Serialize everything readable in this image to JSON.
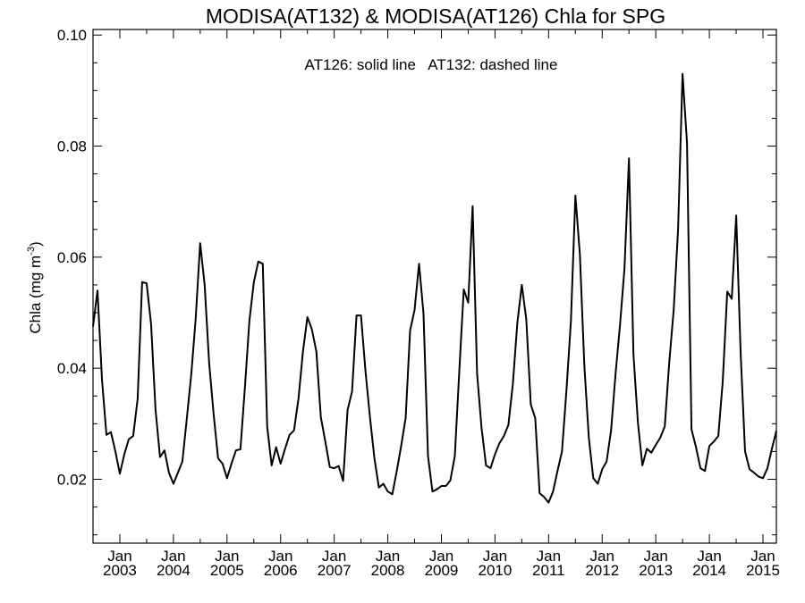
{
  "chart_data": {
    "type": "line",
    "title": "MODISA(AT132) & MODISA(AT126)  Chla for SPG",
    "annotation": "AT126: solid line   AT132: dashed line",
    "ylabel_main": "Chla (mg m",
    "ylabel_sup": "-3",
    "ylabel_close": ")",
    "xlabel": "",
    "xlim": [
      "2002-07-01",
      "2015-04-01"
    ],
    "ylim": [
      0.0085,
      0.101
    ],
    "y_ticks": [
      0.02,
      0.04,
      0.06,
      0.08,
      0.1
    ],
    "y_tick_labels": [
      "0.02",
      "0.04",
      "0.06",
      "0.08",
      "0.10"
    ],
    "x_ticks": [
      {
        "date": "2003-01-01",
        "month": "Jan",
        "year": "2003"
      },
      {
        "date": "2004-01-01",
        "month": "Jan",
        "year": "2004"
      },
      {
        "date": "2005-01-01",
        "month": "Jan",
        "year": "2005"
      },
      {
        "date": "2006-01-01",
        "month": "Jan",
        "year": "2006"
      },
      {
        "date": "2007-01-01",
        "month": "Jan",
        "year": "2007"
      },
      {
        "date": "2008-01-01",
        "month": "Jan",
        "year": "2008"
      },
      {
        "date": "2009-01-01",
        "month": "Jan",
        "year": "2009"
      },
      {
        "date": "2010-01-01",
        "month": "Jan",
        "year": "2010"
      },
      {
        "date": "2011-01-01",
        "month": "Jan",
        "year": "2011"
      },
      {
        "date": "2012-01-01",
        "month": "Jan",
        "year": "2012"
      },
      {
        "date": "2013-01-01",
        "month": "Jan",
        "year": "2013"
      },
      {
        "date": "2014-01-01",
        "month": "Jan",
        "year": "2014"
      },
      {
        "date": "2015-01-01",
        "month": "Jan",
        "year": "2015"
      }
    ],
    "grid": false,
    "series": [
      {
        "line_style": "solid",
        "color": "#000000",
        "points": [
          [
            "2002-07",
            0.0475
          ],
          [
            "2002-08",
            0.054
          ],
          [
            "2002-09",
            0.038
          ],
          [
            "2002-10",
            0.028
          ],
          [
            "2002-11",
            0.0285
          ],
          [
            "2002-12",
            0.025
          ],
          [
            "2003-01",
            0.021
          ],
          [
            "2003-02",
            0.0245
          ],
          [
            "2003-03",
            0.0272
          ],
          [
            "2003-04",
            0.0278
          ],
          [
            "2003-05",
            0.0345
          ],
          [
            "2003-06",
            0.0555
          ],
          [
            "2003-07",
            0.0553
          ],
          [
            "2003-08",
            0.048
          ],
          [
            "2003-09",
            0.0325
          ],
          [
            "2003-10",
            0.024
          ],
          [
            "2003-11",
            0.0252
          ],
          [
            "2003-12",
            0.0212
          ],
          [
            "2004-01",
            0.0192
          ],
          [
            "2004-02",
            0.0212
          ],
          [
            "2004-03",
            0.0232
          ],
          [
            "2004-04",
            0.031
          ],
          [
            "2004-05",
            0.039
          ],
          [
            "2004-06",
            0.049
          ],
          [
            "2004-07",
            0.0625
          ],
          [
            "2004-08",
            0.055
          ],
          [
            "2004-09",
            0.041
          ],
          [
            "2004-10",
            0.0318
          ],
          [
            "2004-11",
            0.0238
          ],
          [
            "2004-12",
            0.0228
          ],
          [
            "2005-01",
            0.0202
          ],
          [
            "2005-02",
            0.0228
          ],
          [
            "2005-03",
            0.0252
          ],
          [
            "2005-04",
            0.0254
          ],
          [
            "2005-05",
            0.0365
          ],
          [
            "2005-06",
            0.0485
          ],
          [
            "2005-07",
            0.0555
          ],
          [
            "2005-08",
            0.0592
          ],
          [
            "2005-09",
            0.0588
          ],
          [
            "2005-10",
            0.0295
          ],
          [
            "2005-11",
            0.0225
          ],
          [
            "2005-12",
            0.0258
          ],
          [
            "2006-01",
            0.0228
          ],
          [
            "2006-02",
            0.0255
          ],
          [
            "2006-03",
            0.028
          ],
          [
            "2006-04",
            0.0288
          ],
          [
            "2006-05",
            0.0345
          ],
          [
            "2006-06",
            0.043
          ],
          [
            "2006-07",
            0.0492
          ],
          [
            "2006-08",
            0.047
          ],
          [
            "2006-09",
            0.043
          ],
          [
            "2006-10",
            0.0312
          ],
          [
            "2006-11",
            0.0268
          ],
          [
            "2006-12",
            0.0222
          ],
          [
            "2007-01",
            0.022
          ],
          [
            "2007-02",
            0.0224
          ],
          [
            "2007-03",
            0.0197
          ],
          [
            "2007-04",
            0.0325
          ],
          [
            "2007-05",
            0.0358
          ],
          [
            "2007-06",
            0.0495
          ],
          [
            "2007-07",
            0.0495
          ],
          [
            "2007-08",
            0.0395
          ],
          [
            "2007-09",
            0.0312
          ],
          [
            "2007-10",
            0.0238
          ],
          [
            "2007-11",
            0.0185
          ],
          [
            "2007-12",
            0.0192
          ],
          [
            "2008-01",
            0.0178
          ],
          [
            "2008-02",
            0.0173
          ],
          [
            "2008-03",
            0.0215
          ],
          [
            "2008-04",
            0.026
          ],
          [
            "2008-05",
            0.031
          ],
          [
            "2008-06",
            0.0468
          ],
          [
            "2008-07",
            0.0505
          ],
          [
            "2008-08",
            0.0588
          ],
          [
            "2008-09",
            0.0498
          ],
          [
            "2008-10",
            0.0242
          ],
          [
            "2008-11",
            0.0178
          ],
          [
            "2008-12",
            0.0182
          ],
          [
            "2009-01",
            0.0188
          ],
          [
            "2009-02",
            0.0188
          ],
          [
            "2009-03",
            0.0198
          ],
          [
            "2009-04",
            0.0242
          ],
          [
            "2009-05",
            0.0395
          ],
          [
            "2009-06",
            0.0542
          ],
          [
            "2009-07",
            0.0518
          ],
          [
            "2009-08",
            0.0692
          ],
          [
            "2009-09",
            0.039
          ],
          [
            "2009-10",
            0.0292
          ],
          [
            "2009-11",
            0.0225
          ],
          [
            "2009-12",
            0.022
          ],
          [
            "2010-01",
            0.0245
          ],
          [
            "2010-02",
            0.0265
          ],
          [
            "2010-03",
            0.0278
          ],
          [
            "2010-04",
            0.0298
          ],
          [
            "2010-05",
            0.0372
          ],
          [
            "2010-06",
            0.0482
          ],
          [
            "2010-07",
            0.055
          ],
          [
            "2010-08",
            0.0488
          ],
          [
            "2010-09",
            0.0335
          ],
          [
            "2010-10",
            0.031
          ],
          [
            "2010-11",
            0.0175
          ],
          [
            "2010-12",
            0.0168
          ],
          [
            "2011-01",
            0.0158
          ],
          [
            "2011-02",
            0.0178
          ],
          [
            "2011-03",
            0.0215
          ],
          [
            "2011-04",
            0.025
          ],
          [
            "2011-05",
            0.036
          ],
          [
            "2011-06",
            0.0485
          ],
          [
            "2011-07",
            0.0711
          ],
          [
            "2011-08",
            0.0605
          ],
          [
            "2011-09",
            0.0405
          ],
          [
            "2011-10",
            0.0275
          ],
          [
            "2011-11",
            0.0202
          ],
          [
            "2011-12",
            0.0192
          ],
          [
            "2012-01",
            0.0218
          ],
          [
            "2012-02",
            0.0232
          ],
          [
            "2012-03",
            0.0288
          ],
          [
            "2012-04",
            0.039
          ],
          [
            "2012-05",
            0.0478
          ],
          [
            "2012-06",
            0.058
          ],
          [
            "2012-07",
            0.0778
          ],
          [
            "2012-08",
            0.0425
          ],
          [
            "2012-09",
            0.0302
          ],
          [
            "2012-10",
            0.0225
          ],
          [
            "2012-11",
            0.0255
          ],
          [
            "2012-12",
            0.0248
          ],
          [
            "2013-01",
            0.0262
          ],
          [
            "2013-02",
            0.0275
          ],
          [
            "2013-03",
            0.0295
          ],
          [
            "2013-04",
            0.041
          ],
          [
            "2013-05",
            0.0505
          ],
          [
            "2013-06",
            0.065
          ],
          [
            "2013-07",
            0.093
          ],
          [
            "2013-08",
            0.0805
          ],
          [
            "2013-09",
            0.029
          ],
          [
            "2013-10",
            0.0258
          ],
          [
            "2013-11",
            0.022
          ],
          [
            "2013-12",
            0.0215
          ],
          [
            "2014-01",
            0.026
          ],
          [
            "2014-02",
            0.0268
          ],
          [
            "2014-03",
            0.0278
          ],
          [
            "2014-04",
            0.0378
          ],
          [
            "2014-05",
            0.0538
          ],
          [
            "2014-06",
            0.0525
          ],
          [
            "2014-07",
            0.0675
          ],
          [
            "2014-08",
            0.0425
          ],
          [
            "2014-09",
            0.025
          ],
          [
            "2014-10",
            0.0218
          ],
          [
            "2014-11",
            0.0212
          ],
          [
            "2014-12",
            0.0205
          ],
          [
            "2015-01",
            0.0202
          ],
          [
            "2015-02",
            0.022
          ],
          [
            "2015-03",
            0.0255
          ],
          [
            "2015-04",
            0.0287
          ]
        ]
      }
    ]
  }
}
